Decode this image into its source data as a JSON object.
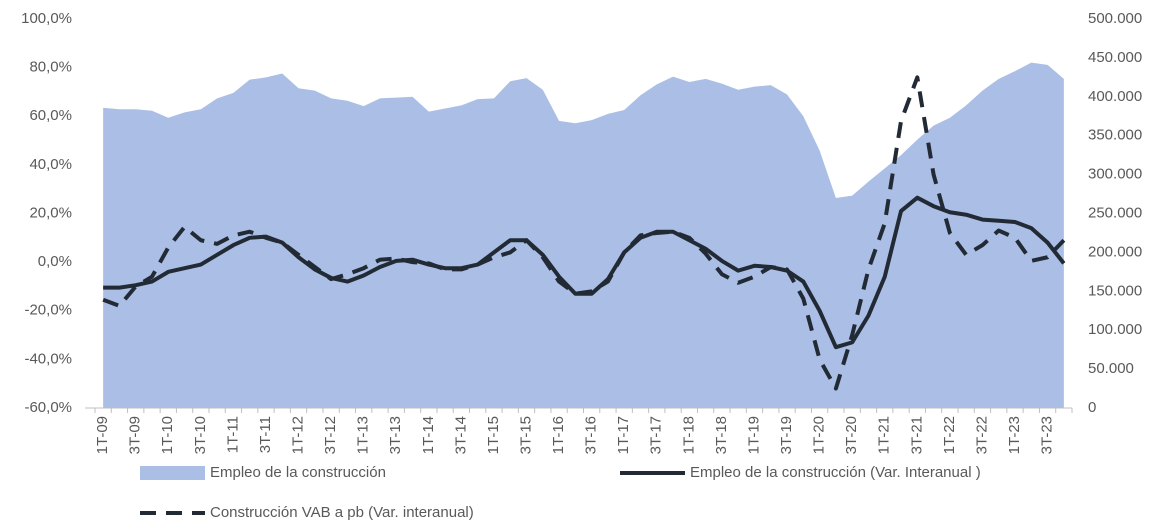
{
  "chart_data": {
    "type": "line",
    "categories": [
      "1T-09",
      null,
      "3T-09",
      null,
      "1T-10",
      null,
      "3T-10",
      null,
      "1T-11",
      null,
      "3T-11",
      null,
      "1T-12",
      null,
      "3T-12",
      null,
      "1T-13",
      null,
      "3T-13",
      null,
      "1T-14",
      null,
      "3T-14",
      null,
      "1T-15",
      null,
      "3T-15",
      null,
      "1T-16",
      null,
      "3T-16",
      null,
      "1T-17",
      null,
      "3T-17",
      null,
      "1T-18",
      null,
      "3T-18",
      null,
      "1T-19",
      null,
      "3T-19",
      null,
      "1T-20",
      null,
      "3T-20",
      null,
      "1T-21",
      null,
      "3T-21",
      null,
      "1T-22",
      null,
      "3T-22",
      null,
      "1T-23",
      null,
      "3T-23",
      null
    ],
    "series": [
      {
        "name": "Empleo de la construcción",
        "type": "area",
        "axis": "y2",
        "color": "#abbfe6",
        "values": [
          386000,
          384000,
          384000,
          382000,
          373000,
          380000,
          384000,
          398000,
          405000,
          422000,
          425000,
          430000,
          411000,
          408000,
          398000,
          395000,
          388000,
          398000,
          399000,
          400000,
          381000,
          385000,
          389000,
          397000,
          398000,
          420000,
          424000,
          409000,
          369000,
          366000,
          370000,
          378000,
          383000,
          402000,
          416000,
          426000,
          419000,
          423000,
          417000,
          409000,
          413000,
          415000,
          403000,
          375000,
          331000,
          270000,
          273000,
          291000,
          308000,
          325000,
          345000,
          363000,
          373000,
          389000,
          408000,
          423000,
          433000,
          444000,
          441000,
          423000
        ]
      },
      {
        "name": "Empleo de la construcción (Var. Interanual )",
        "type": "line",
        "color": "#222a35",
        "dashed": false,
        "values": [
          -10.5,
          -10.5,
          -9.5,
          -8,
          -4,
          -2.5,
          -1,
          3,
          7,
          10,
          10.5,
          8,
          2,
          -3,
          -6.5,
          -8,
          -5.5,
          -2,
          0.5,
          1,
          -1,
          -2.5,
          -2.5,
          -1,
          4,
          9,
          9,
          3,
          -6,
          -13,
          -13,
          -7,
          4,
          10,
          12.5,
          12.5,
          9,
          5.5,
          0.5,
          -3.5,
          -1.5,
          -2,
          -3.5,
          -8,
          -20,
          -35,
          -33,
          -22,
          -6,
          21,
          26.5,
          23,
          20.5,
          19.5,
          17.5,
          17,
          16.5,
          14,
          8,
          -0.5
        ]
      },
      {
        "name": "Construcción VAB a pb (Var. interanual)",
        "type": "line",
        "color": "#222a35",
        "dashed": true,
        "values": [
          -15.5,
          -18,
          -10,
          -6,
          6,
          14.5,
          9,
          7.5,
          11,
          12.5,
          10,
          8,
          3,
          -2,
          -7,
          -5,
          -2.5,
          1,
          1.5,
          0,
          -0.5,
          -3,
          -3,
          -1,
          2,
          4,
          9,
          2,
          -8,
          -13,
          -12,
          -8,
          4,
          11,
          12,
          12.5,
          10,
          3.5,
          -5,
          -8.5,
          -6,
          -2,
          -3,
          -15,
          -40,
          -52,
          -30,
          -3,
          16,
          58,
          76,
          36,
          12,
          3,
          7,
          13,
          10,
          0.5,
          2,
          9
        ]
      }
    ],
    "ylim": [
      -60,
      100
    ],
    "yticks": [
      {
        "value": -60,
        "label": "-60,0%"
      },
      {
        "value": -40,
        "label": "-40,0%"
      },
      {
        "value": -20,
        "label": "-20,0%"
      },
      {
        "value": 0,
        "label": "0,0%"
      },
      {
        "value": 20,
        "label": "20,0%"
      },
      {
        "value": 40,
        "label": "40,0%"
      },
      {
        "value": 60,
        "label": "60,0%"
      },
      {
        "value": 80,
        "label": "80,0%"
      },
      {
        "value": 100,
        "label": "100,0%"
      }
    ],
    "y2lim": [
      0,
      500000
    ],
    "y2ticks": [
      0,
      {
        "value": 50000,
        "label": "50.000"
      },
      {
        "value": 100000,
        "label": "100.000"
      },
      {
        "value": 150000,
        "label": "150.000"
      },
      {
        "value": 200000,
        "label": "200.000"
      },
      {
        "value": 250000,
        "label": "250.000"
      },
      {
        "value": 300000,
        "label": "300.000"
      },
      {
        "value": 350000,
        "label": "350.000"
      },
      {
        "value": 400000,
        "label": "400.000"
      },
      {
        "value": 450000,
        "label": "450.000"
      },
      {
        "value": 500000,
        "label": "500.000"
      }
    ],
    "grid": false,
    "legend": "bottom"
  }
}
